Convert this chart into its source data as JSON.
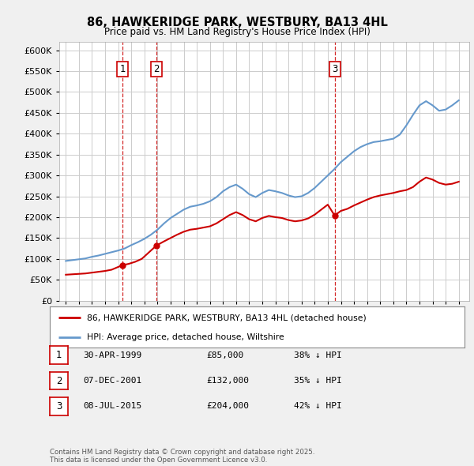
{
  "title": "86, HAWKERIDGE PARK, WESTBURY, BA13 4HL",
  "subtitle": "Price paid vs. HM Land Registry's House Price Index (HPI)",
  "legend_label_red": "86, HAWKERIDGE PARK, WESTBURY, BA13 4HL (detached house)",
  "legend_label_blue": "HPI: Average price, detached house, Wiltshire",
  "footer": "Contains HM Land Registry data © Crown copyright and database right 2025.\nThis data is licensed under the Open Government Licence v3.0.",
  "transactions": [
    {
      "num": 1,
      "date": "30-APR-1999",
      "price": 85000,
      "pct": "38% ↓ HPI",
      "year": 1999.33
    },
    {
      "num": 2,
      "date": "07-DEC-2001",
      "price": 132000,
      "pct": "35% ↓ HPI",
      "year": 2001.92
    },
    {
      "num": 3,
      "date": "08-JUL-2015",
      "price": 204000,
      "pct": "42% ↓ HPI",
      "year": 2015.52
    }
  ],
  "ylim": [
    0,
    620000
  ],
  "yticks": [
    0,
    50000,
    100000,
    150000,
    200000,
    250000,
    300000,
    350000,
    400000,
    450000,
    500000,
    550000,
    600000
  ],
  "background_color": "#f0f0f0",
  "plot_bg": "#ffffff",
  "red_color": "#cc0000",
  "blue_color": "#6699cc",
  "grid_color": "#cccccc",
  "hpi_x": [
    1995,
    1995.5,
    1996,
    1996.5,
    1997,
    1997.5,
    1998,
    1998.5,
    1999,
    1999.5,
    2000,
    2000.5,
    2001,
    2001.5,
    2002,
    2002.5,
    2003,
    2003.5,
    2004,
    2004.5,
    2005,
    2005.5,
    2006,
    2006.5,
    2007,
    2007.5,
    2008,
    2008.5,
    2009,
    2009.5,
    2010,
    2010.5,
    2011,
    2011.5,
    2012,
    2012.5,
    2013,
    2013.5,
    2014,
    2014.5,
    2015,
    2015.5,
    2016,
    2016.5,
    2017,
    2017.5,
    2018,
    2018.5,
    2019,
    2019.5,
    2020,
    2020.5,
    2021,
    2021.5,
    2022,
    2022.5,
    2023,
    2023.5,
    2024,
    2024.5,
    2025
  ],
  "hpi_y": [
    95000,
    97000,
    99000,
    101000,
    105000,
    108000,
    112000,
    116000,
    120000,
    125000,
    133000,
    140000,
    148000,
    158000,
    170000,
    185000,
    198000,
    208000,
    218000,
    225000,
    228000,
    232000,
    238000,
    248000,
    262000,
    272000,
    278000,
    268000,
    255000,
    248000,
    258000,
    265000,
    262000,
    258000,
    252000,
    248000,
    250000,
    258000,
    270000,
    285000,
    300000,
    315000,
    332000,
    345000,
    358000,
    368000,
    375000,
    380000,
    382000,
    385000,
    388000,
    398000,
    420000,
    445000,
    468000,
    478000,
    468000,
    455000,
    458000,
    468000,
    480000
  ],
  "red_x": [
    1995,
    1995.5,
    1996,
    1996.5,
    1997,
    1997.5,
    1998,
    1998.5,
    1999.33,
    1999.8,
    2000.3,
    2000.8,
    2001.92,
    2002.5,
    2003,
    2003.5,
    2004,
    2004.5,
    2005,
    2005.5,
    2006,
    2006.5,
    2007,
    2007.5,
    2008,
    2008.5,
    2009,
    2009.5,
    2010,
    2010.5,
    2011,
    2011.5,
    2012,
    2012.5,
    2013,
    2013.5,
    2014,
    2014.5,
    2015,
    2015.52,
    2016,
    2016.5,
    2017,
    2017.5,
    2018,
    2018.5,
    2019,
    2019.5,
    2020,
    2020.5,
    2021,
    2021.5,
    2022,
    2022.5,
    2023,
    2023.5,
    2024,
    2024.5,
    2025
  ],
  "red_y": [
    62000,
    63000,
    64000,
    65000,
    67000,
    69000,
    71000,
    74000,
    85000,
    88000,
    93000,
    100000,
    132000,
    142000,
    150000,
    158000,
    165000,
    170000,
    172000,
    175000,
    178000,
    185000,
    195000,
    205000,
    212000,
    205000,
    195000,
    190000,
    198000,
    203000,
    200000,
    198000,
    193000,
    190000,
    192000,
    197000,
    206000,
    218000,
    230000,
    204000,
    215000,
    220000,
    228000,
    235000,
    242000,
    248000,
    252000,
    255000,
    258000,
    262000,
    265000,
    272000,
    285000,
    295000,
    290000,
    282000,
    278000,
    280000,
    285000
  ]
}
